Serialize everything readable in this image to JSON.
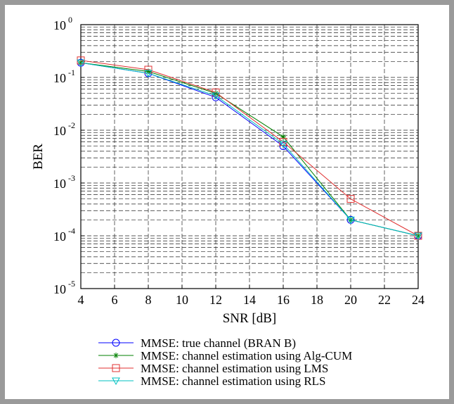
{
  "chart_data": {
    "type": "line",
    "xlabel": "SNR [dB]",
    "ylabel": "BER",
    "xlim": [
      4,
      24
    ],
    "ylim": [
      1e-05,
      1
    ],
    "yscale": "log",
    "grid": true,
    "legend_position": "bottom-center",
    "x_ticks": [
      "4",
      "6",
      "8",
      "10",
      "12",
      "14",
      "16",
      "18",
      "20",
      "22",
      "24"
    ],
    "y_ticks": [
      {
        "base": "10",
        "exp": "0"
      },
      {
        "base": "10",
        "exp": "-1"
      },
      {
        "base": "10",
        "exp": "-2"
      },
      {
        "base": "10",
        "exp": "-3"
      },
      {
        "base": "10",
        "exp": "-4"
      },
      {
        "base": "10",
        "exp": "-5"
      }
    ],
    "x": [
      4,
      8,
      12,
      16,
      20,
      24
    ],
    "series": [
      {
        "name": "MMSE: true channel (BRAN B)",
        "color": "#0000ff",
        "marker": "circle",
        "values": [
          0.19,
          0.12,
          0.042,
          0.005,
          0.0002,
          0.0001
        ]
      },
      {
        "name": "MMSE: channel estimation using Alg-CUM",
        "color": "#008000",
        "marker": "star",
        "values": [
          0.19,
          0.13,
          0.05,
          0.0075,
          0.0002,
          0.0001
        ]
      },
      {
        "name": "MMSE: channel estimation using LMS",
        "color": "#e03030",
        "marker": "square",
        "values": [
          0.21,
          0.14,
          0.052,
          0.006,
          0.0005,
          0.0001
        ]
      },
      {
        "name": "MMSE: channel estimation using RLS",
        "color": "#00c0c0",
        "marker": "triangle-down",
        "values": [
          0.19,
          0.12,
          0.045,
          0.0055,
          0.0002,
          0.0001
        ]
      }
    ]
  }
}
